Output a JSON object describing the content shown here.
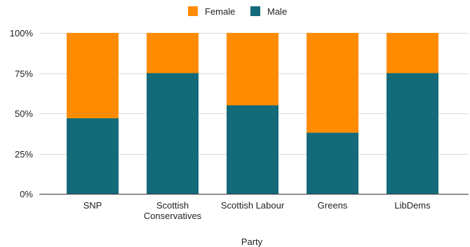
{
  "chart_data": {
    "type": "bar",
    "stacked": true,
    "percent_stacked": true,
    "categories": [
      [
        "SNP"
      ],
      [
        "Scottish",
        "Conservatives"
      ],
      [
        "Scottish Labour"
      ],
      [
        "Greens"
      ],
      [
        "LibDems"
      ]
    ],
    "series": [
      {
        "name": "Male",
        "color": "#136b7a",
        "values": [
          47,
          75,
          55,
          38,
          75
        ]
      },
      {
        "name": "Female",
        "color": "#ff8c00",
        "values": [
          53,
          25,
          45,
          62,
          25
        ]
      }
    ],
    "legend": {
      "position": "top",
      "order": [
        "Female",
        "Male"
      ]
    },
    "xlabel": "Party",
    "ylabel": "",
    "ylim": [
      0,
      100
    ],
    "yticks": [
      {
        "value": 0,
        "label": "0%"
      },
      {
        "value": 25,
        "label": "25%"
      },
      {
        "value": 50,
        "label": "50%"
      },
      {
        "value": 75,
        "label": "75%"
      },
      {
        "value": 100,
        "label": "100%"
      }
    ],
    "grid": true
  }
}
